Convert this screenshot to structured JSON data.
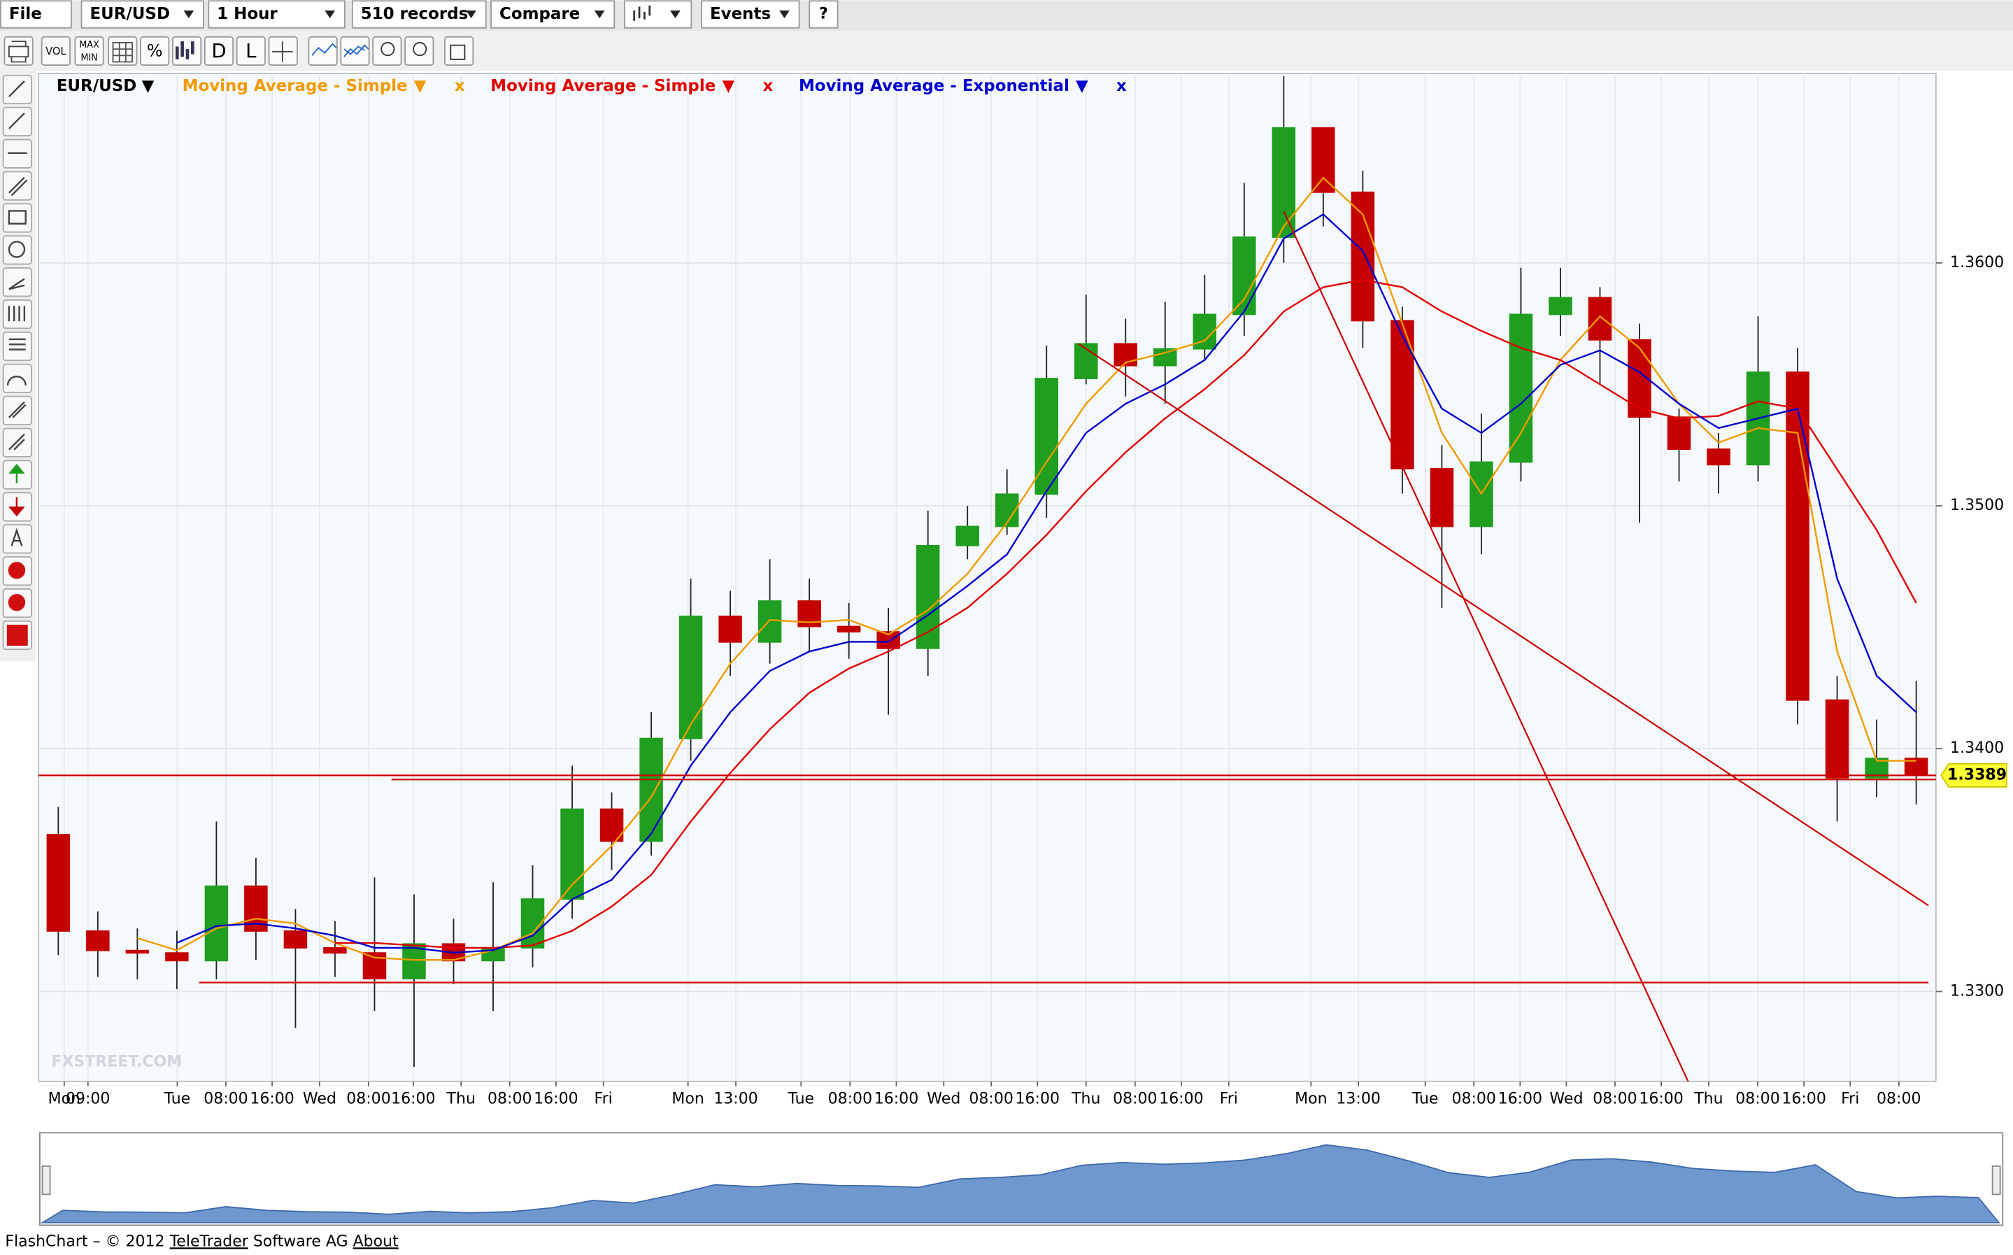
{
  "toolbar": {
    "menus": [
      "File",
      "EUR/USD",
      "1 Hour",
      "510 records",
      "Compare",
      "Events"
    ],
    "help": "?",
    "tools": [
      "VOL",
      "MAX",
      "MIN",
      "%",
      "D",
      "L"
    ]
  },
  "chart_data": {
    "type": "candlestick",
    "legend": {
      "symbol": "EUR/USD",
      "arrow": "▼",
      "remove": "x"
    },
    "watermark": "FXSTREET.COM",
    "xlim": [
      0,
      48
    ],
    "ylim": [
      1.3263,
      1.3678
    ],
    "grid": true,
    "yticks": [
      {
        "value": 1.33,
        "label": "1.3300"
      },
      {
        "value": 1.34,
        "label": "1.3400"
      },
      {
        "value": 1.35,
        "label": "1.3500"
      },
      {
        "value": 1.36,
        "label": "1.3600"
      }
    ],
    "xticks": [
      {
        "value": 0.65,
        "label": "Mon"
      },
      {
        "value": 1.25,
        "label": "09:00"
      },
      {
        "value": 3.51,
        "label": "Tue"
      },
      {
        "value": 4.74,
        "label": "08:00"
      },
      {
        "value": 5.91,
        "label": "16:00"
      },
      {
        "value": 7.11,
        "label": "Wed"
      },
      {
        "value": 8.35,
        "label": "08:00"
      },
      {
        "value": 9.48,
        "label": "16:00"
      },
      {
        "value": 10.69,
        "label": "Thu"
      },
      {
        "value": 11.92,
        "label": "08:00"
      },
      {
        "value": 13.09,
        "label": "16:00"
      },
      {
        "value": 14.29,
        "label": "Fri"
      },
      {
        "value": 16.43,
        "label": "Mon"
      },
      {
        "value": 17.64,
        "label": "13:00"
      },
      {
        "value": 19.29,
        "label": "Tue"
      },
      {
        "value": 20.53,
        "label": "08:00"
      },
      {
        "value": 21.7,
        "label": "16:00"
      },
      {
        "value": 22.9,
        "label": "Wed"
      },
      {
        "value": 24.1,
        "label": "08:00"
      },
      {
        "value": 25.27,
        "label": "16:00"
      },
      {
        "value": 26.5,
        "label": "Thu"
      },
      {
        "value": 27.74,
        "label": "08:00"
      },
      {
        "value": 28.91,
        "label": "16:00"
      },
      {
        "value": 30.11,
        "label": "Fri"
      },
      {
        "value": 32.19,
        "label": "Mon"
      },
      {
        "value": 33.39,
        "label": "13:00"
      },
      {
        "value": 35.08,
        "label": "Tue"
      },
      {
        "value": 36.31,
        "label": "08:00"
      },
      {
        "value": 37.48,
        "label": "16:00"
      },
      {
        "value": 38.65,
        "label": "Wed"
      },
      {
        "value": 39.88,
        "label": "08:00"
      },
      {
        "value": 41.05,
        "label": "16:00"
      },
      {
        "value": 42.25,
        "label": "Thu"
      },
      {
        "value": 43.49,
        "label": "08:00"
      },
      {
        "value": 44.66,
        "label": "16:00"
      },
      {
        "value": 45.83,
        "label": "Fri"
      },
      {
        "value": 47.06,
        "label": "08:00"
      }
    ],
    "candles": {
      "up_color": "#1f9e1f",
      "down_color": "#c40000",
      "open": [
        1.33646,
        1.33249,
        1.33169,
        1.33159,
        1.33127,
        1.33434,
        1.33249,
        1.3318,
        1.33159,
        1.33053,
        1.33196,
        1.33127,
        1.3318,
        1.33381,
        1.33751,
        1.33619,
        1.34042,
        1.34545,
        1.34439,
        1.34608,
        1.34503,
        1.34481,
        1.34413,
        1.34836,
        1.34915,
        1.35048,
        1.35524,
        1.35667,
        1.35577,
        1.35646,
        1.35788,
        1.36106,
        1.36556,
        1.36291,
        1.35762,
        1.35153,
        1.34915,
        1.3518,
        1.35788,
        1.35857,
        1.35683,
        1.35365,
        1.35233,
        1.35169,
        1.3555,
        1.342,
        1.3388,
        1.3396
      ],
      "high": [
        1.3376,
        1.3333,
        1.3326,
        1.3325,
        1.337,
        1.3355,
        1.3334,
        1.3329,
        1.3347,
        1.334,
        1.333,
        1.3345,
        1.3352,
        1.3393,
        1.3382,
        1.3415,
        1.347,
        1.3465,
        1.3478,
        1.347,
        1.346,
        1.3458,
        1.3498,
        1.35,
        1.3515,
        1.3566,
        1.3587,
        1.3577,
        1.3584,
        1.3595,
        1.3633,
        1.3677,
        1.364,
        1.3638,
        1.3582,
        1.3525,
        1.3538,
        1.3598,
        1.3598,
        1.359,
        1.3575,
        1.354,
        1.353,
        1.3578,
        1.3565,
        1.343,
        1.3412,
        1.3428
      ],
      "low": [
        1.3315,
        1.3306,
        1.3305,
        1.3301,
        1.3305,
        1.3313,
        1.3285,
        1.3306,
        1.3292,
        1.3269,
        1.3303,
        1.3292,
        1.331,
        1.333,
        1.335,
        1.3356,
        1.3395,
        1.343,
        1.3435,
        1.344,
        1.3437,
        1.3414,
        1.343,
        1.3478,
        1.3488,
        1.3495,
        1.355,
        1.3545,
        1.3542,
        1.356,
        1.357,
        1.36,
        1.3615,
        1.3565,
        1.3505,
        1.3458,
        1.348,
        1.351,
        1.357,
        1.355,
        1.3493,
        1.351,
        1.3505,
        1.351,
        1.341,
        1.337,
        1.338,
        1.3377
      ],
      "close": [
        1.33249,
        1.33169,
        1.33159,
        1.33127,
        1.33434,
        1.33249,
        1.3318,
        1.33159,
        1.33053,
        1.33196,
        1.33127,
        1.3318,
        1.33381,
        1.33751,
        1.33619,
        1.34042,
        1.34545,
        1.34439,
        1.34608,
        1.34503,
        1.34481,
        1.34413,
        1.34836,
        1.34915,
        1.35048,
        1.35524,
        1.35667,
        1.35577,
        1.35646,
        1.35788,
        1.36106,
        1.36556,
        1.36291,
        1.35762,
        1.35153,
        1.34915,
        1.3518,
        1.35788,
        1.35857,
        1.35683,
        1.35365,
        1.35233,
        1.35169,
        1.3555,
        1.342,
        1.3388,
        1.3396,
        1.3389
      ]
    },
    "series": [
      {
        "name": "Moving Average - Simple",
        "color": "#f09a00",
        "values": [
          null,
          null,
          1.3322,
          1.3317,
          1.3326,
          1.333,
          1.3328,
          1.332,
          1.3314,
          1.3313,
          1.3313,
          1.3317,
          1.3324,
          1.3344,
          1.336,
          1.338,
          1.341,
          1.3435,
          1.3453,
          1.3452,
          1.3453,
          1.3447,
          1.3457,
          1.3472,
          1.3493,
          1.3518,
          1.3542,
          1.3559,
          1.3563,
          1.3568,
          1.3585,
          1.3615,
          1.3635,
          1.362,
          1.3575,
          1.353,
          1.3505,
          1.353,
          1.356,
          1.3578,
          1.3565,
          1.3542,
          1.3526,
          1.3532,
          1.353,
          1.344,
          1.3395,
          1.3395
        ]
      },
      {
        "name": "Moving Average - Simple",
        "color": "#e00000",
        "values": [
          null,
          null,
          null,
          null,
          null,
          null,
          null,
          1.332,
          1.332,
          1.3319,
          1.3318,
          1.3318,
          1.3319,
          1.3325,
          1.3335,
          1.3348,
          1.337,
          1.339,
          1.3408,
          1.3423,
          1.3433,
          1.344,
          1.3448,
          1.3458,
          1.3472,
          1.3488,
          1.3506,
          1.3522,
          1.3536,
          1.3548,
          1.3562,
          1.358,
          1.359,
          1.3593,
          1.359,
          1.358,
          1.3572,
          1.3565,
          1.356,
          1.355,
          1.354,
          1.3536,
          1.3537,
          1.3543,
          1.354,
          1.3515,
          1.349,
          1.346
        ]
      },
      {
        "name": "Moving Average - Exponential",
        "color": "#0000cc",
        "values": [
          null,
          null,
          null,
          1.332,
          1.3327,
          1.3328,
          1.3326,
          1.3323,
          1.3318,
          1.3318,
          1.3316,
          1.3317,
          1.3323,
          1.3338,
          1.3346,
          1.3365,
          1.3393,
          1.3415,
          1.3432,
          1.344,
          1.3444,
          1.3444,
          1.3455,
          1.3467,
          1.348,
          1.3506,
          1.353,
          1.3542,
          1.355,
          1.356,
          1.358,
          1.361,
          1.362,
          1.3605,
          1.357,
          1.354,
          1.353,
          1.3542,
          1.3558,
          1.3564,
          1.3555,
          1.3542,
          1.3532,
          1.3536,
          1.354,
          1.347,
          1.343,
          1.3415
        ]
      }
    ],
    "trend_color": "#cc0000",
    "trend_lines": [
      {
        "x": [
          0,
          48
        ],
        "y": [
          1.3389,
          1.3389
        ]
      },
      {
        "x": [
          8.93,
          48
        ],
        "y": [
          1.33873,
          1.33873
        ]
      },
      {
        "x": [
          4.06,
          47.81
        ],
        "y": [
          1.33037,
          1.33037
        ]
      },
      {
        "x": [
          31.5,
          41.73
        ],
        "y": [
          1.36212,
          1.3263
        ]
      },
      {
        "x": [
          26.31,
          47.81
        ],
        "y": [
          1.35667,
          1.33354
        ]
      }
    ],
    "last_price": 1.3389
  },
  "footer": {
    "product": "FlashChart – © 2012 ",
    "company": "TeleTrader",
    "suffix": " Software AG ",
    "link": "About"
  }
}
